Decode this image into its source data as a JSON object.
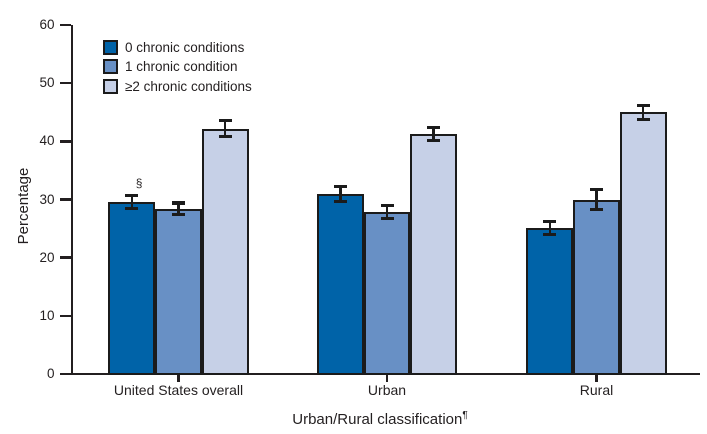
{
  "chart_data": {
    "type": "bar",
    "title": "",
    "xlabel": "Urban/Rural classification",
    "xlabel_sup": "¶",
    "ylabel": "Percentage",
    "categories": [
      "United States overall",
      "Urban",
      "Rural"
    ],
    "series": [
      {
        "name": "0 chronic conditions",
        "color": "#0063a8",
        "values": [
          29.6,
          31.0,
          25.1
        ],
        "errors": [
          1.1,
          1.3,
          1.1
        ]
      },
      {
        "name": "1 chronic condition",
        "color": "#6890c5",
        "values": [
          28.4,
          27.9,
          30.0
        ],
        "errors": [
          1.0,
          1.1,
          1.7
        ]
      },
      {
        "name": "≥2 chronic conditions",
        "color": "#c6d0e7",
        "values": [
          42.2,
          41.3,
          45.0
        ],
        "errors": [
          1.4,
          1.1,
          1.2
        ]
      }
    ],
    "ylim": [
      0,
      60
    ],
    "yticks": [
      0,
      10,
      20,
      30,
      40,
      50,
      60
    ],
    "grid": false,
    "legend_position": "top-left",
    "annotations": [
      {
        "text": "§",
        "group": 0,
        "series": 0
      }
    ],
    "axis_color": "#231f20",
    "error_bar_color": "#1b1b1b"
  }
}
